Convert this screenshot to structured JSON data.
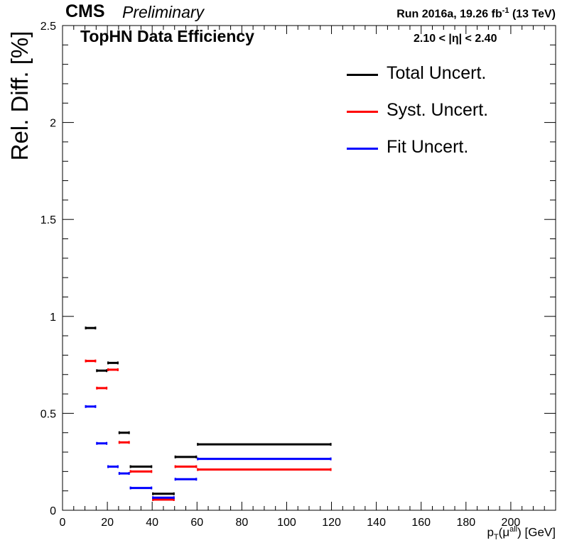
{
  "header": {
    "experiment": "CMS",
    "status": "Preliminary",
    "run_prefix": "Run 2016a,  19.26 fb",
    "run_sup": "-1",
    "run_suffix": "  (13 TeV)"
  },
  "chart_data": {
    "type": "line",
    "title": "TopHN Data Efficiency",
    "annotation": "2.10 < |η| < 2.40",
    "ylabel": "Rel. Diff. [%]",
    "xlabel": {
      "p": "p",
      "sub": "T",
      "mid": "(μ",
      "sup": "all",
      "end": ") [GeV]"
    },
    "xlim": [
      0,
      220
    ],
    "ylim": [
      0,
      2.5
    ],
    "x_ticks": [
      0,
      20,
      40,
      60,
      80,
      100,
      120,
      140,
      160,
      180,
      200
    ],
    "y_ticks": [
      "0",
      "0.5",
      "1",
      "1.5",
      "2",
      "2.5"
    ],
    "bins": [
      [
        10,
        15
      ],
      [
        15,
        20
      ],
      [
        20,
        25
      ],
      [
        25,
        30
      ],
      [
        30,
        40
      ],
      [
        40,
        50
      ],
      [
        50,
        60
      ],
      [
        60,
        120
      ]
    ],
    "series": [
      {
        "name": "Total Uncert.",
        "color": "#000000",
        "values": [
          0.94,
          0.72,
          0.76,
          0.4,
          0.225,
          0.085,
          0.275,
          0.34
        ]
      },
      {
        "name": "Syst. Uncert.",
        "color": "#ff0000",
        "values": [
          0.77,
          0.63,
          0.725,
          0.35,
          0.2,
          0.055,
          0.225,
          0.21
        ]
      },
      {
        "name": "Fit Uncert.",
        "color": "#0000ff",
        "values": [
          0.535,
          0.345,
          0.225,
          0.19,
          0.115,
          0.065,
          0.16,
          0.265
        ]
      }
    ]
  }
}
